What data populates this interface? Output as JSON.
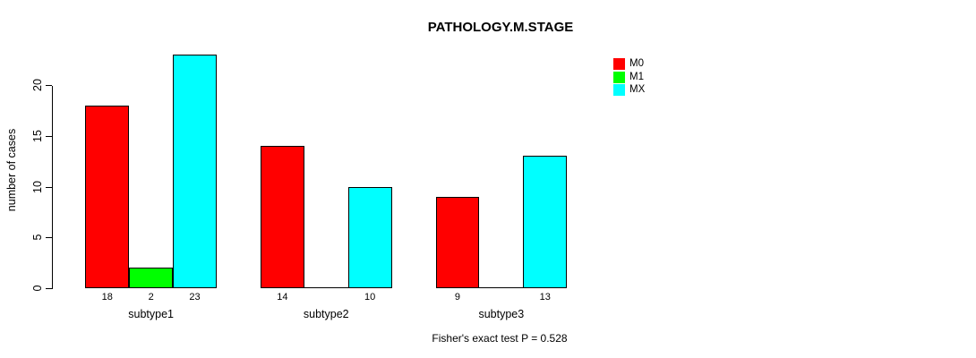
{
  "title": "PATHOLOGY.M.STAGE",
  "y_axis": {
    "label": "number of cases",
    "ticks": [
      "0",
      "5",
      "10",
      "15",
      "20"
    ]
  },
  "footnote": "Fisher's exact test P = 0.528",
  "legend": {
    "position": "top-right",
    "items": [
      {
        "label": "M0",
        "color": "#ff0000"
      },
      {
        "label": "M1",
        "color": "#00ff00"
      },
      {
        "label": "MX",
        "color": "#00ffff"
      }
    ]
  },
  "chart_data": {
    "type": "bar",
    "grouping": "beside",
    "title": "PATHOLOGY.M.STAGE",
    "xlabel": "",
    "ylabel": "number of cases",
    "categories": [
      "subtype1",
      "subtype2",
      "subtype3"
    ],
    "series": [
      {
        "name": "M0",
        "color": "#ff0000",
        "values": [
          18,
          14,
          9
        ]
      },
      {
        "name": "M1",
        "color": "#00ff00",
        "values": [
          2,
          0,
          0
        ]
      },
      {
        "name": "MX",
        "color": "#00ffff",
        "values": [
          23,
          10,
          13
        ]
      }
    ],
    "bar_value_labels": {
      "shown": true,
      "zero_values_unlabeled": true
    },
    "visible_value_labels": [
      "18",
      "2",
      "23",
      "14",
      "10",
      "9",
      "13"
    ],
    "yticks": [
      0,
      5,
      10,
      15,
      20
    ],
    "ylim": [
      0,
      23.2
    ],
    "grid": false,
    "legend_position": "top-right",
    "annotation": "Fisher's exact test P = 0.528",
    "bar_border_color": "#000000",
    "background_color": "#ffffff"
  }
}
